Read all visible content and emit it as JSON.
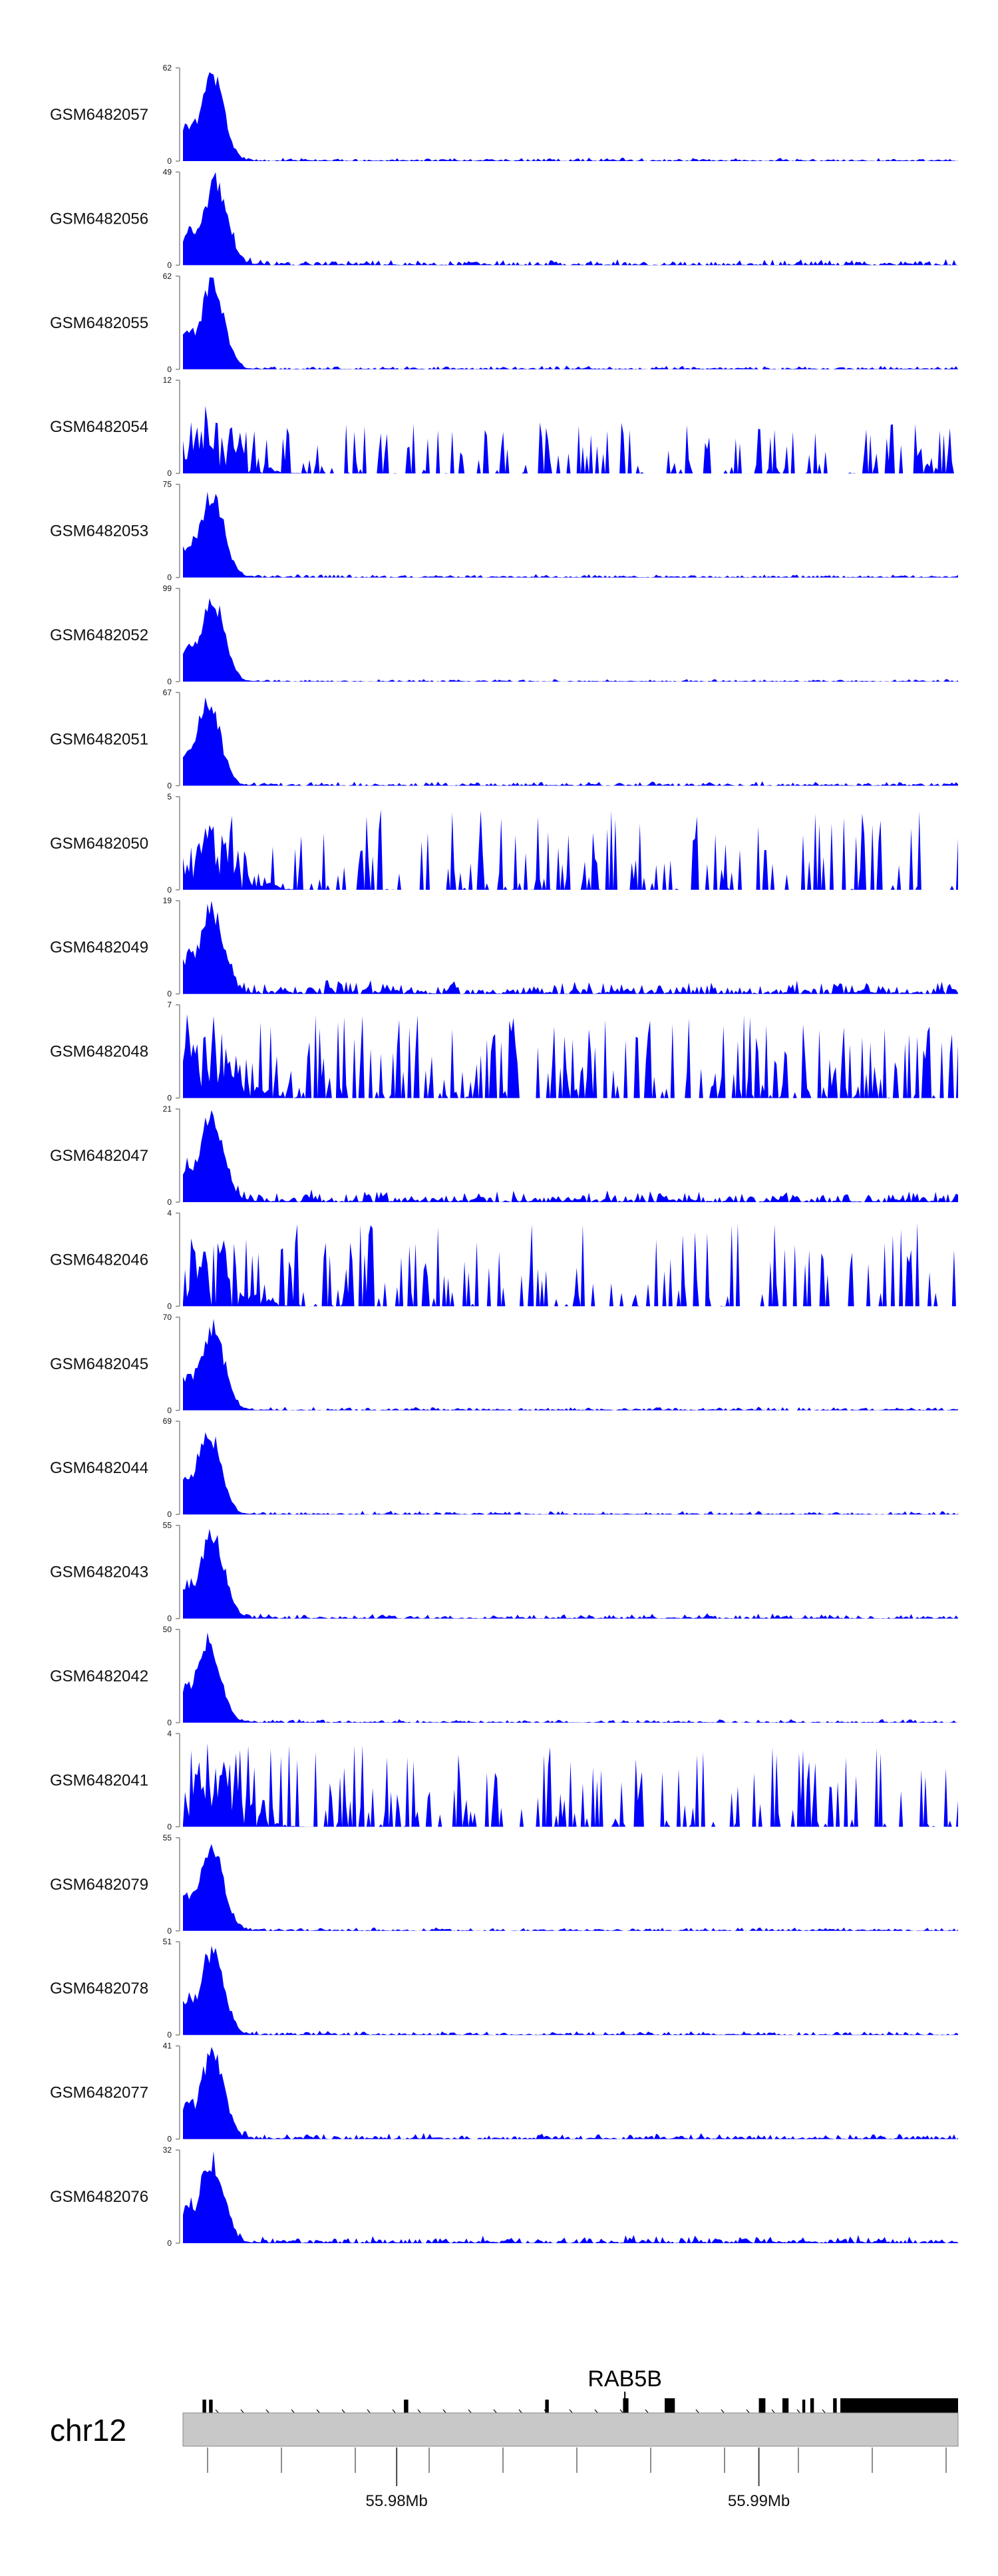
{
  "chart_data": {
    "type": "area",
    "fill_color": "#0000ff",
    "ideogram_color": "#c8c8c8",
    "chromosome": "chr12",
    "region_mb": [
      55.9741,
      55.9955
    ],
    "axis_ticks_mb": [
      55.98,
      55.99
    ],
    "axis_tick_labels": [
      "55.98Mb",
      "55.99Mb"
    ],
    "gene": {
      "name": "RAB5B",
      "strand": "+",
      "label_position_mb": 55.9863,
      "exons_mb": [
        [
          55.97464,
          55.97474
        ],
        [
          55.97482,
          55.97492
        ],
        [
          55.9802,
          55.98032
        ],
        [
          55.9841,
          55.9842
        ],
        [
          55.98625,
          55.9864
        ],
        [
          55.9874,
          55.98768
        ],
        [
          55.99,
          55.99018
        ],
        [
          55.99065,
          55.99082
        ],
        [
          55.9912,
          55.99128
        ],
        [
          55.99142,
          55.99152
        ],
        [
          55.99205,
          55.99215
        ],
        [
          55.99225,
          55.9955
        ]
      ]
    },
    "tracks": [
      {
        "name": "GSM6482057",
        "ymax": "62",
        "profile": "peak",
        "peak_mb": 55.9749,
        "noise": 0.04,
        "seed": 1
      },
      {
        "name": "GSM6482056",
        "ymax": "49",
        "profile": "peak",
        "peak_mb": 55.975,
        "noise": 0.07,
        "seed": 2
      },
      {
        "name": "GSM6482055",
        "ymax": "62",
        "profile": "peak",
        "peak_mb": 55.9749,
        "noise": 0.04,
        "seed": 3
      },
      {
        "name": "GSM6482054",
        "ymax": "12",
        "profile": "sparse",
        "peak_mb": 55.9749,
        "noise": 0.35,
        "seed": 4
      },
      {
        "name": "GSM6482053",
        "ymax": "75",
        "profile": "peak",
        "peak_mb": 55.9749,
        "noise": 0.04,
        "seed": 5
      },
      {
        "name": "GSM6482052",
        "ymax": "99",
        "profile": "peak",
        "peak_mb": 55.9749,
        "noise": 0.03,
        "seed": 6
      },
      {
        "name": "GSM6482051",
        "ymax": "67",
        "profile": "peak",
        "peak_mb": 55.9748,
        "noise": 0.05,
        "seed": 7
      },
      {
        "name": "GSM6482050",
        "ymax": "5",
        "profile": "spiky",
        "peak_mb": 55.975,
        "noise": 0.55,
        "seed": 8
      },
      {
        "name": "GSM6482049",
        "ymax": "19",
        "profile": "peak",
        "peak_mb": 55.9749,
        "noise": 0.16,
        "seed": 9
      },
      {
        "name": "GSM6482048",
        "ymax": "7",
        "profile": "dense",
        "peak_mb": 55.9749,
        "noise": 0.45,
        "seed": 10
      },
      {
        "name": "GSM6482047",
        "ymax": "21",
        "profile": "peak",
        "peak_mb": 55.9749,
        "noise": 0.14,
        "seed": 11
      },
      {
        "name": "GSM6482046",
        "ymax": "4",
        "profile": "spiky",
        "peak_mb": 55.9749,
        "noise": 0.5,
        "seed": 12
      },
      {
        "name": "GSM6482045",
        "ymax": "70",
        "profile": "peak",
        "peak_mb": 55.9749,
        "noise": 0.04,
        "seed": 13
      },
      {
        "name": "GSM6482044",
        "ymax": "69",
        "profile": "peak",
        "peak_mb": 55.9748,
        "noise": 0.04,
        "seed": 14
      },
      {
        "name": "GSM6482043",
        "ymax": "55",
        "profile": "peak",
        "peak_mb": 55.9749,
        "noise": 0.06,
        "seed": 15
      },
      {
        "name": "GSM6482042",
        "ymax": "50",
        "profile": "peak",
        "peak_mb": 55.9748,
        "noise": 0.04,
        "seed": 16
      },
      {
        "name": "GSM6482041",
        "ymax": "4",
        "profile": "spiky",
        "peak_mb": 55.975,
        "noise": 0.55,
        "seed": 17
      },
      {
        "name": "GSM6482079",
        "ymax": "55",
        "profile": "peak",
        "peak_mb": 55.9749,
        "noise": 0.04,
        "seed": 18
      },
      {
        "name": "GSM6482078",
        "ymax": "51",
        "profile": "peak",
        "peak_mb": 55.9749,
        "noise": 0.05,
        "seed": 19
      },
      {
        "name": "GSM6482077",
        "ymax": "41",
        "profile": "peak",
        "peak_mb": 55.9749,
        "noise": 0.07,
        "seed": 20
      },
      {
        "name": "GSM6482076",
        "ymax": "32",
        "profile": "peak",
        "peak_mb": 55.9749,
        "noise": 0.09,
        "seed": 21
      }
    ]
  }
}
